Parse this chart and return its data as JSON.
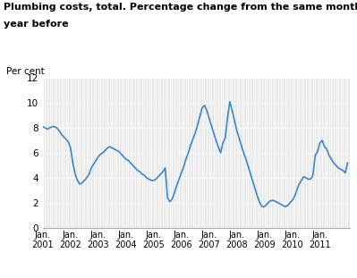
{
  "title_line1": "Plumbing costs, total. Percentage change from the same month one",
  "title_line2": "year before",
  "ylabel_text": "Per cent",
  "ylim": [
    0,
    12
  ],
  "yticks": [
    0,
    2,
    4,
    6,
    8,
    10,
    12
  ],
  "xtick_labels": [
    "Jan.\n2001",
    "Jan.\n2002",
    "Jan.\n2003",
    "Jan.\n2004",
    "Jan.\n2005",
    "Jan.\n2006",
    "Jan.\n2007",
    "Jan.\n2008",
    "Jan.\n2009",
    "Jan.\n2010",
    "Jan.\n2011"
  ],
  "line_color": "#3a87c8",
  "line_width": 1.2,
  "plot_bg_color": "#e8e8e8",
  "fig_bg_color": "#ffffff",
  "grid_color": "#ffffff",
  "series": [
    8.1,
    8.0,
    7.9,
    8.0,
    8.1,
    8.1,
    8.0,
    7.8,
    7.5,
    7.3,
    7.1,
    6.9,
    6.4,
    5.2,
    4.3,
    3.8,
    3.5,
    3.6,
    3.8,
    4.0,
    4.3,
    4.8,
    5.1,
    5.4,
    5.7,
    5.9,
    6.0,
    6.2,
    6.4,
    6.5,
    6.4,
    6.3,
    6.2,
    6.1,
    5.9,
    5.7,
    5.5,
    5.4,
    5.2,
    5.0,
    4.8,
    4.6,
    4.5,
    4.3,
    4.2,
    4.0,
    3.9,
    3.8,
    3.8,
    3.9,
    4.1,
    4.3,
    4.5,
    4.8,
    2.4,
    2.1,
    2.3,
    2.8,
    3.4,
    3.9,
    4.4,
    4.9,
    5.5,
    6.0,
    6.6,
    7.1,
    7.6,
    8.2,
    8.9,
    9.6,
    9.8,
    9.4,
    8.8,
    8.2,
    7.6,
    7.0,
    6.5,
    6.0,
    6.8,
    7.2,
    8.8,
    10.1,
    9.4,
    8.6,
    7.8,
    7.2,
    6.6,
    6.0,
    5.5,
    4.9,
    4.3,
    3.7,
    3.1,
    2.5,
    2.0,
    1.7,
    1.7,
    1.9,
    2.1,
    2.2,
    2.2,
    2.1,
    2.0,
    1.9,
    1.8,
    1.7,
    1.8,
    2.0,
    2.2,
    2.5,
    3.0,
    3.5,
    3.8,
    4.1,
    4.0,
    3.9,
    3.9,
    4.2,
    5.8,
    6.1,
    6.8,
    7.0,
    6.5,
    6.3,
    5.8,
    5.5,
    5.2,
    5.0,
    4.8,
    4.7,
    4.6,
    4.4,
    5.2
  ]
}
